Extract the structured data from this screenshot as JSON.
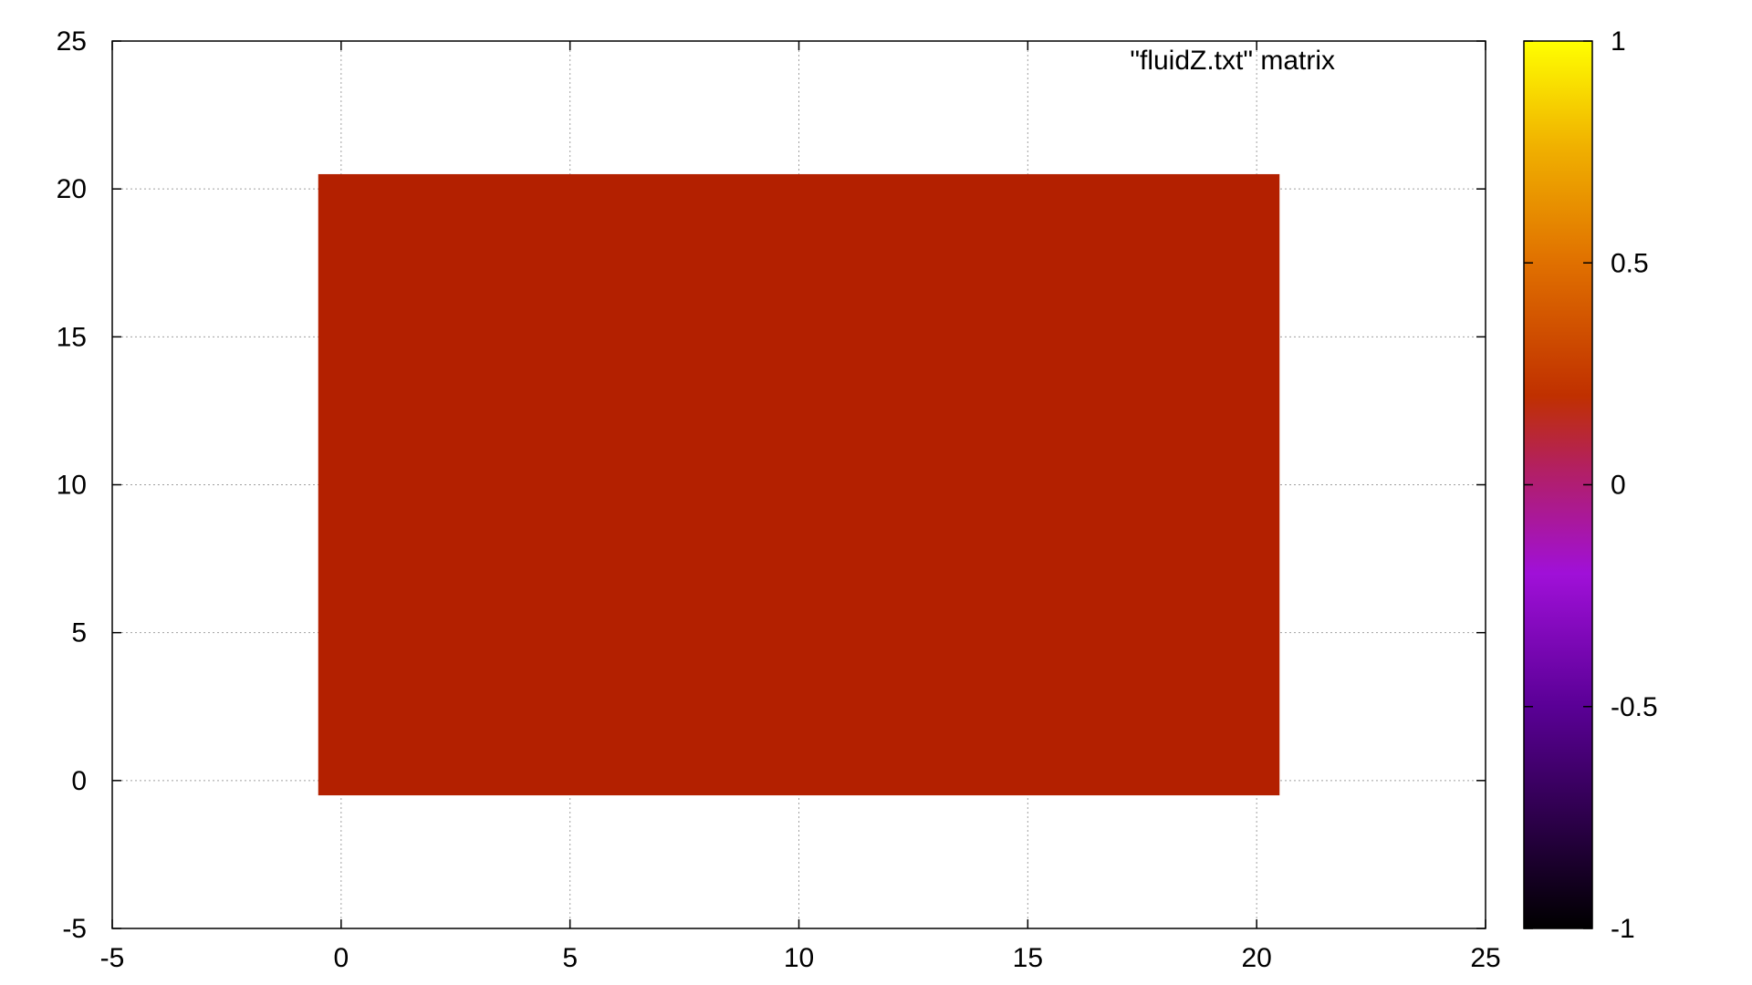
{
  "chart_data": {
    "type": "heatmap",
    "title": "\"fluidZ.txt\" matrix",
    "legend_position": "top-right",
    "xlim": [
      -5,
      25
    ],
    "ylim": [
      -5,
      25
    ],
    "x_ticks": [
      -5,
      0,
      5,
      10,
      15,
      20,
      25
    ],
    "y_ticks": [
      -5,
      0,
      5,
      10,
      15,
      20,
      25
    ],
    "x_tick_labels": [
      "-5",
      "0",
      "5",
      "10",
      "15",
      "20",
      "25"
    ],
    "y_tick_labels": [
      "-5",
      "0",
      "5",
      "10",
      "15",
      "20",
      "25"
    ],
    "grid": true,
    "matrix": {
      "x_range": [
        0,
        20
      ],
      "y_range": [
        0,
        20
      ],
      "cell_size": 1,
      "value": 0,
      "color": "#b32000"
    },
    "colorbar": {
      "range": [
        -1,
        1
      ],
      "ticks": [
        -1,
        -0.5,
        0,
        0.5,
        1
      ],
      "tick_labels": [
        "-1",
        "-0.5",
        "0",
        "0.5",
        "1"
      ],
      "palette": [
        {
          "stop": 0,
          "color": "#000000"
        },
        {
          "stop": 0.25,
          "color": "#5a0096"
        },
        {
          "stop": 0.4,
          "color": "#a010d8"
        },
        {
          "stop": 0.52,
          "color": "#b32060"
        },
        {
          "stop": 0.6,
          "color": "#c03000"
        },
        {
          "stop": 0.75,
          "color": "#e07000"
        },
        {
          "stop": 0.88,
          "color": "#f0b000"
        },
        {
          "stop": 1,
          "color": "#ffff00"
        }
      ]
    }
  }
}
